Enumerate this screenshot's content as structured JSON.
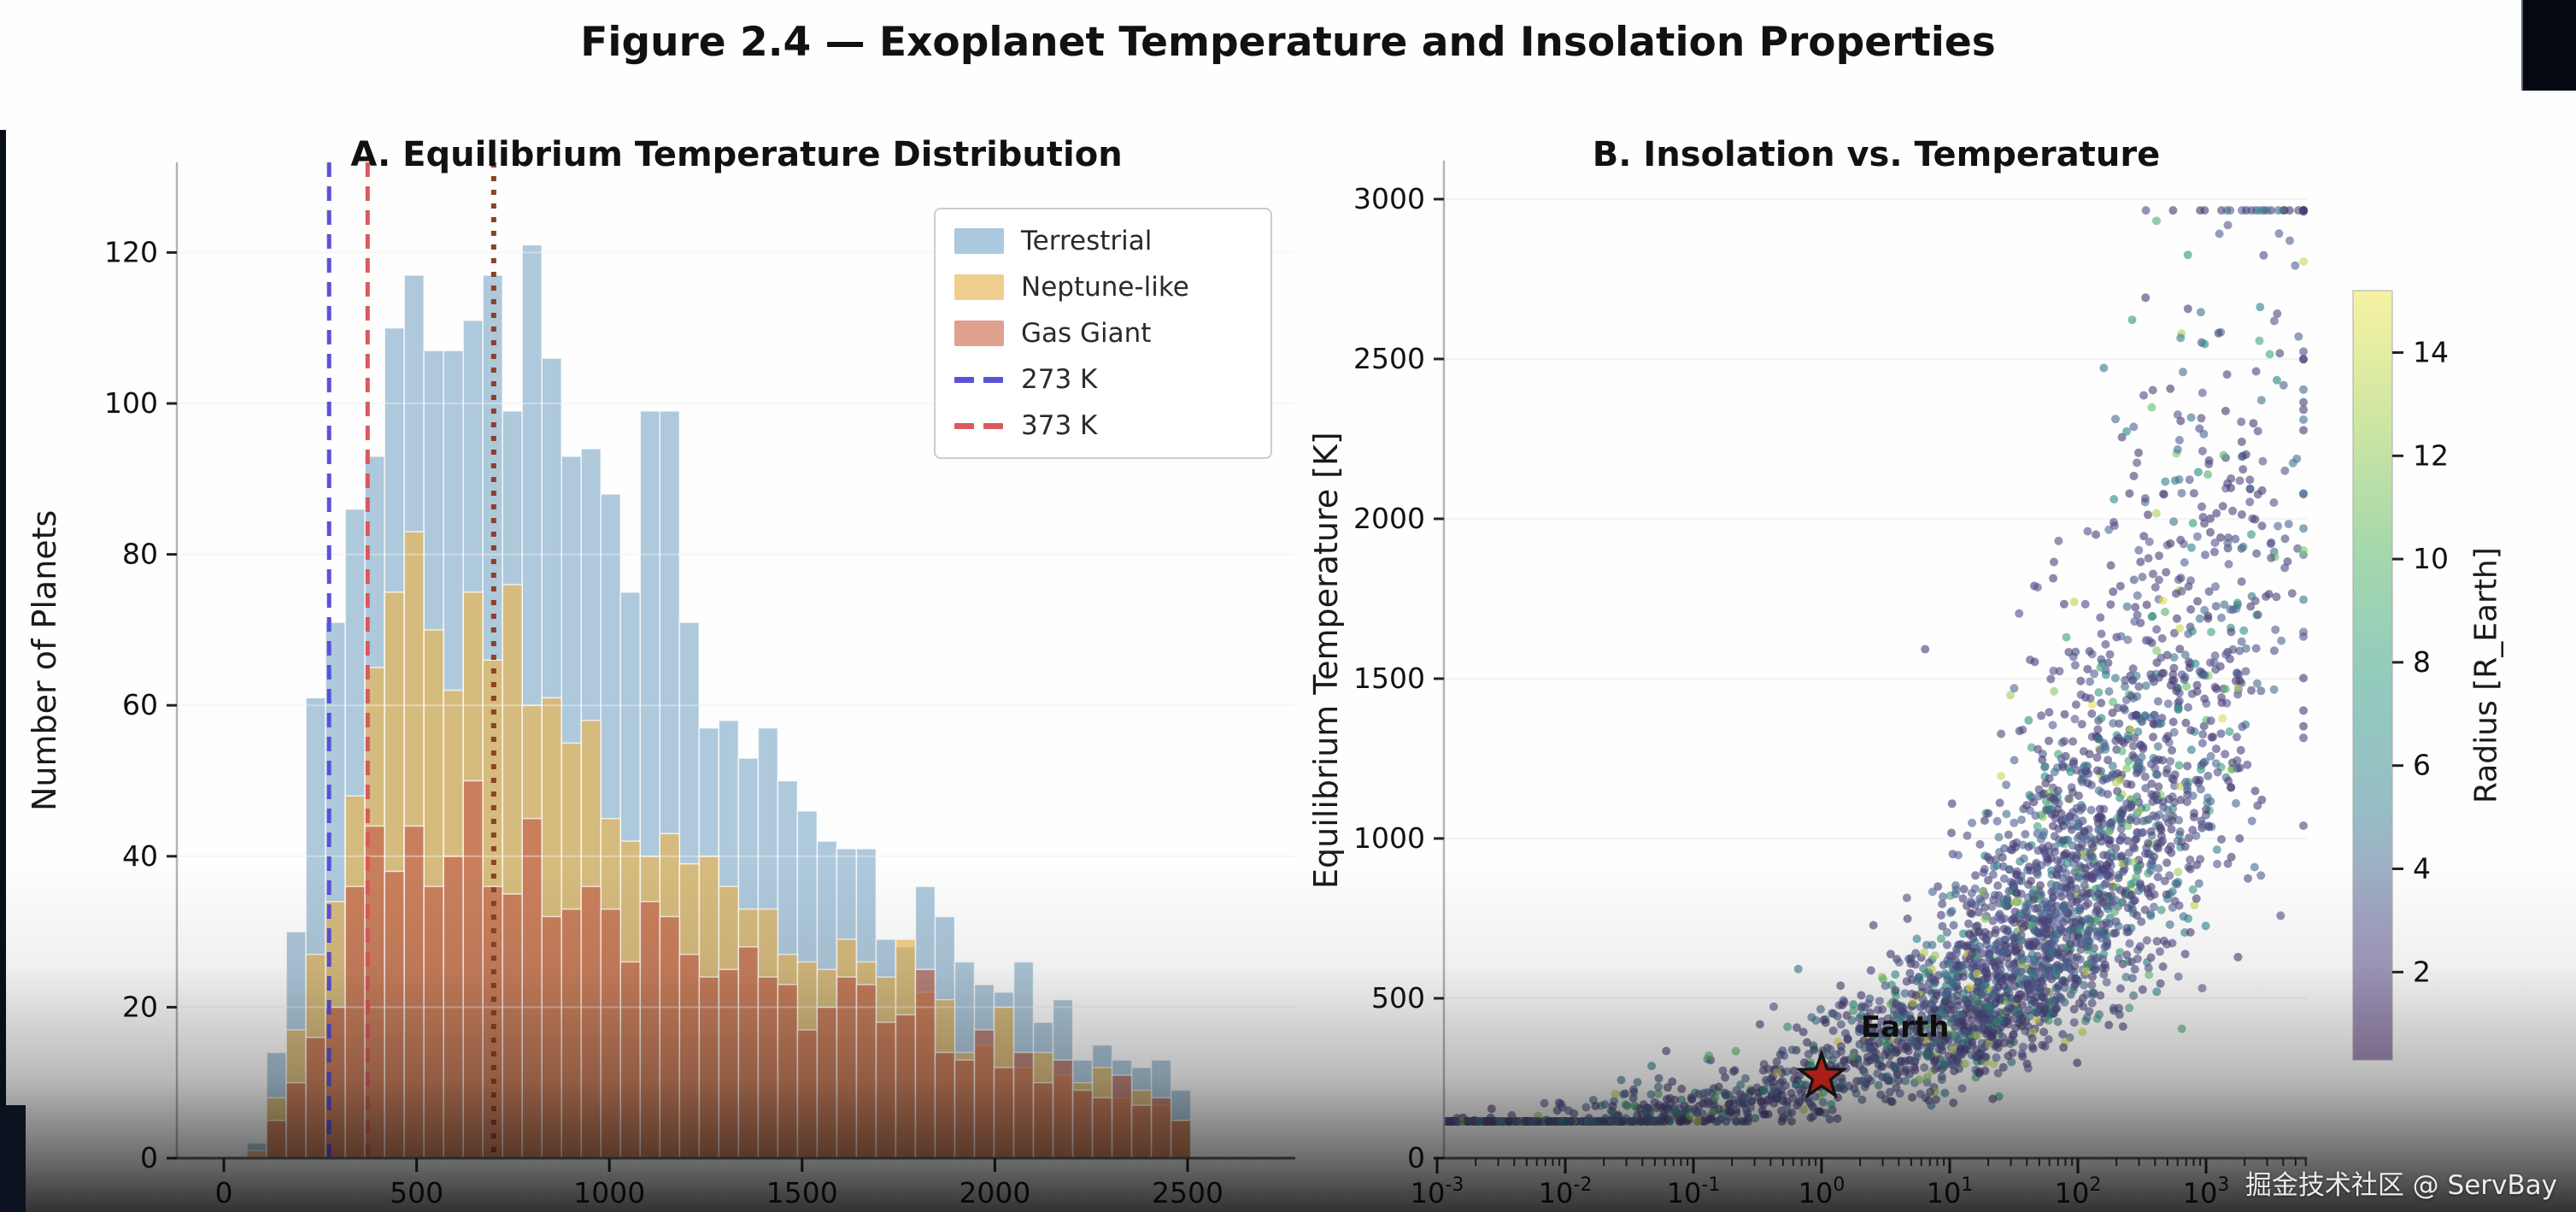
{
  "figure": {
    "title": "Figure 2.4 — Exoplanet Temperature and Insolation Properties"
  },
  "watermark": {
    "text": "掘金技术社区 @ ServBay"
  },
  "chart_data": [
    {
      "type": "bar",
      "subtype": "overlaid-histogram",
      "title": "A. Equilibrium Temperature Distribution",
      "xlabel": "",
      "ylabel": "Number of Planets",
      "xlim": [
        -120,
        2780
      ],
      "ylim": [
        0,
        132
      ],
      "xticks": [
        0,
        500,
        1000,
        1500,
        2000,
        2500
      ],
      "yticks": [
        0,
        20,
        40,
        60,
        80,
        100,
        120
      ],
      "grid": "horizontal-faint",
      "legend_position": "upper right",
      "bin_start_K": 60,
      "bin_width_K": 51,
      "series": [
        {
          "name": "Terrestrial",
          "legend_color": "#aac8de",
          "fill_rgb": [
            120,
            165,
            197
          ],
          "fill_alpha": 0.6,
          "values": [
            2,
            14,
            30,
            61,
            71,
            86,
            93,
            110,
            117,
            107,
            107,
            111,
            117,
            99,
            121,
            106,
            93,
            94,
            88,
            75,
            99,
            99,
            71,
            57,
            58,
            53,
            57,
            50,
            46,
            42,
            41,
            41,
            29,
            28,
            36,
            32,
            26,
            23,
            22,
            26,
            18,
            21,
            13,
            15,
            13,
            12,
            13,
            9
          ]
        },
        {
          "name": "Neptune-like",
          "legend_color": "#eecd8e",
          "fill_rgb": [
            240,
            179,
            63
          ],
          "fill_alpha": 0.6,
          "values": [
            1,
            8,
            17,
            27,
            34,
            48,
            65,
            75,
            83,
            70,
            62,
            75,
            66,
            76,
            60,
            61,
            55,
            58,
            45,
            42,
            40,
            43,
            39,
            40,
            36,
            33,
            33,
            27,
            26,
            25,
            29,
            26,
            24,
            29,
            22,
            21,
            14,
            15,
            20,
            12,
            14,
            11,
            10,
            12,
            8,
            9,
            7,
            5
          ]
        },
        {
          "name": "Gas Giant",
          "legend_color": "#e0a08e",
          "fill_rgb": [
            194,
            96,
            74
          ],
          "fill_alpha": 0.65,
          "values": [
            0,
            5,
            10,
            16,
            20,
            36,
            44,
            38,
            44,
            36,
            40,
            50,
            36,
            35,
            45,
            32,
            33,
            36,
            33,
            26,
            34,
            32,
            27,
            24,
            25,
            28,
            24,
            23,
            17,
            20,
            24,
            23,
            18,
            19,
            25,
            14,
            13,
            17,
            12,
            14,
            10,
            13,
            9,
            8,
            11,
            7,
            8,
            5
          ]
        }
      ],
      "vlines": [
        {
          "label": "273 K",
          "value": 273,
          "color": "#5a52d6",
          "style": "dashed"
        },
        {
          "label": "373 K",
          "value": 373,
          "color": "#d9595c",
          "style": "dashed"
        },
        {
          "label": "",
          "value": 700,
          "color": "#8b4226",
          "style": "dotted"
        }
      ]
    },
    {
      "type": "scatter",
      "title": "B. Insolation vs. Temperature",
      "xlabel": "",
      "ylabel": "Equilibrium Temperature [K]",
      "x_scale": "log10",
      "x_decades": [
        -3,
        -2,
        -1,
        0,
        1,
        2,
        3
      ],
      "xlim_log10": [
        -3.05,
        3.79
      ],
      "ylim": [
        0,
        3000
      ],
      "yticks": [
        0,
        500,
        1000,
        1500,
        2000,
        2500,
        3000
      ],
      "grid": "horizontal-faint",
      "annotation": {
        "label": "Earth",
        "x_flux": 1,
        "y_K": 255,
        "marker": "red-star"
      },
      "colorbar": {
        "label": "Radius [R_Earth]",
        "ticks": [
          2,
          4,
          6,
          8,
          10,
          12,
          14
        ],
        "vmin": 0.3,
        "vmax": 15.2,
        "gradient_bottom_to_top": [
          "#a08bb5",
          "#a3a2c2",
          "#97bec6",
          "#93cbbd",
          "#a5d8ab",
          "#cfe6a2",
          "#f6f2a2"
        ]
      },
      "points": {
        "note": "dense synthetic cloud, procedurally regenerated",
        "count": 3200,
        "seed": 42,
        "log10_flux_mix": {
          "gauss_mean": 1.95,
          "gauss_sd": 0.85,
          "gauss_weight": 0.7,
          "uniform_range": [
            -3.05,
            1.95
          ]
        },
        "teq_model": "T = 265 * flux^0.25 * exp(N(0,0.34)), clamped 115..2965",
        "radius_mix": "62% purple 0.8+|N(0,1.6)|, 30% teal 4+|N(0,2.4)|, 8% yellow-green 9+U(0,6.3)",
        "dot_alpha": 0.62,
        "dot_radius_px": 5,
        "cmap_stops_rgb": [
          [
            70,
            55,
            110
          ],
          [
            86,
            96,
            150
          ],
          [
            40,
            140,
            135
          ],
          [
            100,
            190,
            110
          ],
          [
            240,
            225,
            80
          ]
        ]
      }
    }
  ]
}
